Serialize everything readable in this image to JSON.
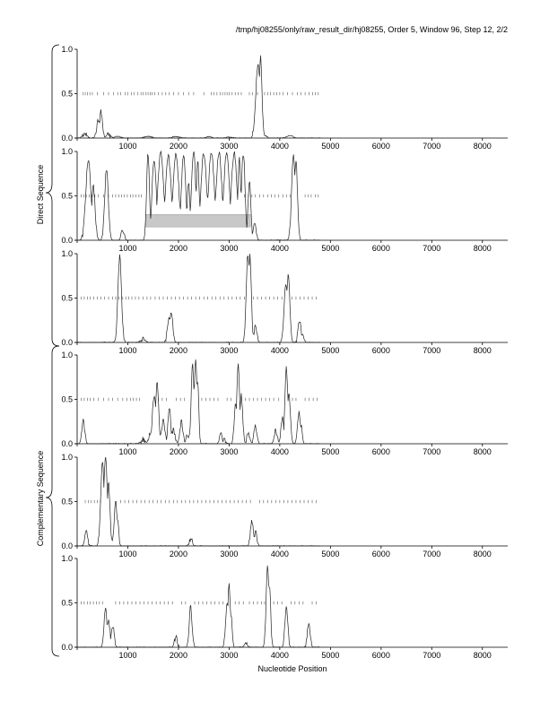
{
  "header": {
    "title": "/tmp/hj08255/only/raw_result_dir/hj08255, Order 5, Window 96, Step 12, 2/2"
  },
  "groups": {
    "direct_label": "Direct Sequence",
    "complementary_label": "Complementary Sequence"
  },
  "xlabel": "Nucleotide Position",
  "colors": {
    "trace": "#222222",
    "highlight": "#c8c8c8",
    "axis": "#000000"
  },
  "chart_data": [
    {
      "type": "line",
      "panel": 1,
      "group": "Direct Sequence",
      "xlim": [
        0,
        8500
      ],
      "ylim": [
        0,
        1
      ],
      "xticks": [
        1000,
        2000,
        3000,
        4000,
        5000,
        6000,
        7000,
        8000
      ],
      "yticks": [
        "0.0",
        "0.5",
        "1.0"
      ],
      "peaks": [
        [
          150,
          0.05,
          60
        ],
        [
          420,
          0.2,
          50
        ],
        [
          470,
          0.3,
          40
        ],
        [
          620,
          0.04,
          60
        ],
        [
          800,
          0.02,
          80
        ],
        [
          1400,
          0.02,
          100
        ],
        [
          1950,
          0.02,
          80
        ],
        [
          2600,
          0.02,
          60
        ],
        [
          3000,
          0.01,
          80
        ],
        [
          3570,
          0.85,
          60
        ],
        [
          3620,
          0.92,
          40
        ],
        [
          3700,
          0.03,
          60
        ],
        [
          4200,
          0.03,
          80
        ]
      ],
      "ticks05": [
        120,
        160,
        200,
        250,
        300,
        400,
        520,
        620,
        720,
        800,
        860,
        950,
        1000,
        1070,
        1120,
        1200,
        1260,
        1300,
        1360,
        1400,
        1440,
        1480,
        1530,
        1600,
        1680,
        1750,
        1820,
        1900,
        2000,
        2100,
        2200,
        2300,
        2500,
        2650,
        2700,
        2760,
        2820,
        2870,
        2920,
        2960,
        3000,
        3060,
        3120,
        3180,
        3240,
        3400,
        3460,
        3560,
        3700,
        3760,
        3820,
        3880,
        3940,
        4000,
        4060,
        4150,
        4250,
        4350,
        4420,
        4500,
        4580,
        4650,
        4700,
        4760
      ],
      "highlight": null
    },
    {
      "type": "line",
      "panel": 2,
      "group": "Direct Sequence",
      "xlim": [
        0,
        8500
      ],
      "ylim": [
        0,
        1
      ],
      "xticks": [
        1000,
        2000,
        3000,
        4000,
        5000,
        6000,
        7000,
        8000
      ],
      "yticks": [
        "0.0",
        "0.5",
        "1.0"
      ],
      "peaks": [
        [
          220,
          0.9,
          70
        ],
        [
          320,
          0.6,
          50
        ],
        [
          580,
          0.8,
          50
        ],
        [
          900,
          0.12,
          40
        ],
        [
          1400,
          0.98,
          40
        ],
        [
          1520,
          0.9,
          60
        ],
        [
          1650,
          0.99,
          80
        ],
        [
          1800,
          0.95,
          80
        ],
        [
          1950,
          0.98,
          80
        ],
        [
          2100,
          0.97,
          60
        ],
        [
          2200,
          0.65,
          40
        ],
        [
          2300,
          0.99,
          60
        ],
        [
          2380,
          0.9,
          40
        ],
        [
          2500,
          0.98,
          80
        ],
        [
          2650,
          0.99,
          80
        ],
        [
          2800,
          0.99,
          80
        ],
        [
          2950,
          0.97,
          80
        ],
        [
          3100,
          0.99,
          80
        ],
        [
          3200,
          0.92,
          40
        ],
        [
          3280,
          0.98,
          50
        ],
        [
          3400,
          0.65,
          40
        ],
        [
          3500,
          0.2,
          40
        ],
        [
          4270,
          0.98,
          50
        ],
        [
          4320,
          0.92,
          40
        ]
      ],
      "ticks05": [
        80,
        130,
        180,
        240,
        290,
        350,
        420,
        520,
        620,
        700,
        760,
        820,
        880,
        930,
        990,
        1050,
        1100,
        1160,
        1220,
        1270,
        3300,
        3380,
        3450,
        3520,
        3600,
        3680,
        3760,
        3830,
        3900,
        3980,
        4060,
        4130,
        4200,
        4500,
        4560,
        4620,
        4700,
        4760
      ],
      "highlight": {
        "x0": 1350,
        "x1": 3420,
        "y0": 0.15,
        "y1": 0.29
      }
    },
    {
      "type": "line",
      "panel": 3,
      "group": "Direct Sequence",
      "xlim": [
        0,
        8500
      ],
      "ylim": [
        0,
        1
      ],
      "xticks": [
        1000,
        2000,
        3000,
        4000,
        5000,
        6000,
        7000,
        8000
      ],
      "yticks": [
        "0.0",
        "0.5",
        "1.0"
      ],
      "peaks": [
        [
          840,
          0.97,
          50
        ],
        [
          1300,
          0.05,
          60
        ],
        [
          1820,
          0.28,
          50
        ],
        [
          1860,
          0.34,
          40
        ],
        [
          3370,
          0.98,
          45
        ],
        [
          3410,
          0.99,
          40
        ],
        [
          3520,
          0.18,
          40
        ],
        [
          4120,
          0.65,
          50
        ],
        [
          4170,
          0.78,
          40
        ],
        [
          4390,
          0.25,
          40
        ],
        [
          4450,
          0.08,
          40
        ]
      ],
      "ticks05": [
        80,
        140,
        200,
        260,
        330,
        400,
        470,
        540,
        620,
        700,
        760,
        820,
        900,
        960,
        1020,
        1080,
        1150,
        1220,
        1300,
        1380,
        1450,
        1540,
        1620,
        1700,
        1780,
        1860,
        1940,
        2020,
        2100,
        2180,
        2260,
        2340,
        2420,
        2500,
        2580,
        2660,
        2740,
        2820,
        2900,
        2980,
        3060,
        3140,
        3220,
        3300,
        3480,
        3560,
        3640,
        3720,
        3800,
        3880,
        3960,
        4040,
        4240,
        4320,
        4400,
        4480,
        4560,
        4640,
        4720
      ],
      "highlight": null
    },
    {
      "type": "line",
      "panel": 4,
      "group": "Complementary Sequence",
      "xlim": [
        0,
        8500
      ],
      "ylim": [
        0,
        1
      ],
      "xticks": [
        1000,
        2000,
        3000,
        4000,
        5000,
        6000,
        7000,
        8000
      ],
      "yticks": [
        "0.0",
        "0.5",
        "1.0"
      ],
      "peaks": [
        [
          120,
          0.25,
          40
        ],
        [
          1300,
          0.05,
          60
        ],
        [
          1450,
          0.12,
          50
        ],
        [
          1520,
          0.55,
          50
        ],
        [
          1580,
          0.7,
          40
        ],
        [
          1700,
          0.25,
          50
        ],
        [
          1820,
          0.4,
          40
        ],
        [
          1900,
          0.15,
          50
        ],
        [
          2060,
          0.25,
          40
        ],
        [
          2180,
          0.1,
          40
        ],
        [
          2280,
          0.9,
          40
        ],
        [
          2340,
          0.96,
          40
        ],
        [
          2380,
          0.7,
          30
        ],
        [
          2840,
          0.1,
          40
        ],
        [
          2900,
          0.06,
          40
        ],
        [
          3130,
          0.45,
          40
        ],
        [
          3180,
          0.88,
          40
        ],
        [
          3240,
          0.55,
          40
        ],
        [
          3380,
          0.12,
          40
        ],
        [
          3520,
          0.2,
          40
        ],
        [
          3920,
          0.15,
          40
        ],
        [
          4050,
          0.3,
          40
        ],
        [
          4130,
          0.85,
          40
        ],
        [
          4180,
          0.55,
          40
        ],
        [
          4380,
          0.35,
          40
        ],
        [
          4420,
          0.2,
          30
        ]
      ],
      "ticks05": [
        80,
        140,
        200,
        260,
        330,
        420,
        520,
        620,
        700,
        800,
        900,
        980,
        1050,
        1110,
        1170,
        1230,
        1600,
        1680,
        1760,
        1960,
        2040,
        2120,
        2460,
        2540,
        2620,
        2700,
        2780,
        2960,
        3040,
        3320,
        3400,
        3480,
        3560,
        3640,
        3720,
        3800,
        3880,
        3980,
        4250,
        4320,
        4500,
        4580,
        4660,
        4740
      ],
      "highlight": null
    },
    {
      "type": "line",
      "panel": 5,
      "group": "Complementary Sequence",
      "xlim": [
        0,
        8500
      ],
      "ylim": [
        0,
        1
      ],
      "xticks": [
        1000,
        2000,
        3000,
        4000,
        5000,
        6000,
        7000,
        8000
      ],
      "yticks": [
        "0.0",
        "0.5",
        "1.0"
      ],
      "peaks": [
        [
          180,
          0.15,
          40
        ],
        [
          500,
          0.93,
          50
        ],
        [
          560,
          1.0,
          50
        ],
        [
          620,
          0.7,
          40
        ],
        [
          760,
          0.5,
          40
        ],
        [
          800,
          0.3,
          30
        ],
        [
          2240,
          0.08,
          40
        ],
        [
          3450,
          0.28,
          40
        ],
        [
          3520,
          0.15,
          40
        ]
      ],
      "ticks05": [
        160,
        220,
        280,
        340,
        400,
        460,
        860,
        940,
        1020,
        1100,
        1180,
        1260,
        1340,
        1420,
        1500,
        1580,
        1660,
        1740,
        1820,
        1900,
        1980,
        2060,
        2140,
        2220,
        2300,
        2380,
        2460,
        2540,
        2620,
        2700,
        2780,
        2860,
        2940,
        3020,
        3100,
        3180,
        3260,
        3340,
        3420,
        3600,
        3680,
        3760,
        3840,
        3920,
        4000,
        4080,
        4160,
        4240,
        4320,
        4400,
        4480,
        4560,
        4640,
        4720
      ],
      "highlight": null
    },
    {
      "type": "line",
      "panel": 6,
      "group": "Complementary Sequence",
      "xlim": [
        0,
        8500
      ],
      "ylim": [
        0,
        1
      ],
      "xticks": [
        1000,
        2000,
        3000,
        4000,
        5000,
        6000,
        7000,
        8000
      ],
      "yticks": [
        "0.0",
        "0.5",
        "1.0"
      ],
      "peaks": [
        [
          560,
          0.45,
          40
        ],
        [
          620,
          0.3,
          40
        ],
        [
          700,
          0.25,
          40
        ],
        [
          1950,
          0.12,
          40
        ],
        [
          2240,
          0.45,
          40
        ],
        [
          2960,
          0.5,
          40
        ],
        [
          3000,
          0.7,
          35
        ],
        [
          3040,
          0.35,
          30
        ],
        [
          3330,
          0.05,
          40
        ],
        [
          3760,
          0.9,
          40
        ],
        [
          3800,
          0.7,
          30
        ],
        [
          4130,
          0.45,
          40
        ],
        [
          4570,
          0.25,
          40
        ]
      ],
      "ticks05": [
        80,
        140,
        200,
        260,
        320,
        380,
        440,
        500,
        760,
        840,
        920,
        1000,
        1080,
        1160,
        1240,
        1320,
        1400,
        1480,
        1560,
        1640,
        1720,
        1800,
        1880,
        2060,
        2140,
        2320,
        2400,
        2480,
        2560,
        2640,
        2720,
        2800,
        2880,
        3120,
        3200,
        3280,
        3400,
        3480,
        3560,
        3640,
        3700,
        3880,
        3960,
        4040,
        4220,
        4300,
        4380,
        4460,
        4640,
        4720
      ],
      "highlight": null
    }
  ]
}
